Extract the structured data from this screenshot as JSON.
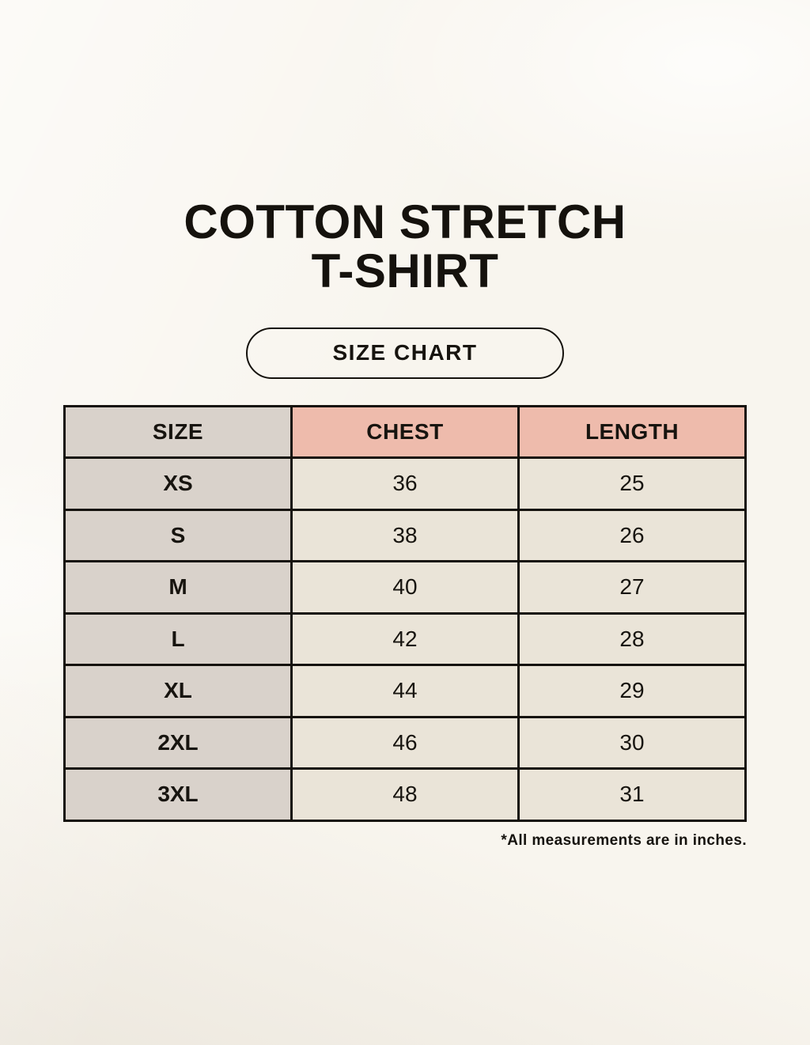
{
  "title": {
    "line1": "COTTON STRETCH",
    "line2": "T-SHIRT"
  },
  "size_chart_badge": {
    "label": "SIZE CHART"
  },
  "footnote": "*All measurements are in inches.",
  "chart_data": {
    "type": "table",
    "title": "COTTON STRETCH T-SHIRT",
    "subtitle": "SIZE CHART",
    "columns": [
      "SIZE",
      "CHEST",
      "LENGTH"
    ],
    "rows": [
      {
        "size": "XS",
        "chest": 36,
        "length": 25
      },
      {
        "size": "S",
        "chest": 38,
        "length": 26
      },
      {
        "size": "M",
        "chest": 40,
        "length": 27
      },
      {
        "size": "L",
        "chest": 42,
        "length": 28
      },
      {
        "size": "XL",
        "chest": 44,
        "length": 29
      },
      {
        "size": "2XL",
        "chest": 46,
        "length": 30
      },
      {
        "size": "3XL",
        "chest": 48,
        "length": 31
      }
    ],
    "units": "inches",
    "layout_hints": {
      "header_colors": {
        "SIZE": "#d9d2cb",
        "CHEST": "#eebbac",
        "LENGTH": "#eebbac"
      },
      "size_column_color": "#d9d2cb",
      "data_cell_color": "#eae4d8",
      "grid": true
    }
  },
  "colors": {
    "background": "#f8f5ee",
    "header_pink": "#eebbac",
    "column_gray": "#d9d2cb",
    "cell_cream": "#eae4d8",
    "border": "#15120d",
    "text": "#15120d"
  }
}
